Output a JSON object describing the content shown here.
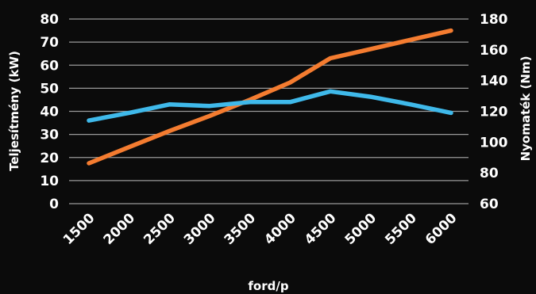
{
  "chart_data": {
    "type": "line",
    "title": "",
    "xlabel": "ford/p",
    "ylabel_left": "Teljesítmény (kW)",
    "ylabel_right": "Nyomaték (Nm)",
    "categories": [
      "1500",
      "2000",
      "2500",
      "3000",
      "3500",
      "4000",
      "4500",
      "5000",
      "5500",
      "6000"
    ],
    "left_axis": {
      "ylim": [
        0,
        80
      ],
      "ticks": [
        "0",
        "10",
        "20",
        "30",
        "40",
        "50",
        "60",
        "70",
        "80"
      ]
    },
    "right_axis": {
      "ylim": [
        60,
        180
      ],
      "ticks": [
        "60",
        "80",
        "100",
        "120",
        "140",
        "160",
        "180"
      ]
    },
    "grid": true,
    "legend": "none",
    "series": [
      {
        "axis": "left",
        "color": "#f47c30",
        "values": [
          17.5,
          24.5,
          31.5,
          38,
          45,
          52.5,
          63,
          67,
          71,
          75
        ]
      },
      {
        "axis": "right",
        "color": "#3fb9ea",
        "values": [
          114,
          119,
          124.5,
          123.5,
          126,
          126,
          133,
          129.5,
          124.5,
          119
        ]
      }
    ]
  }
}
